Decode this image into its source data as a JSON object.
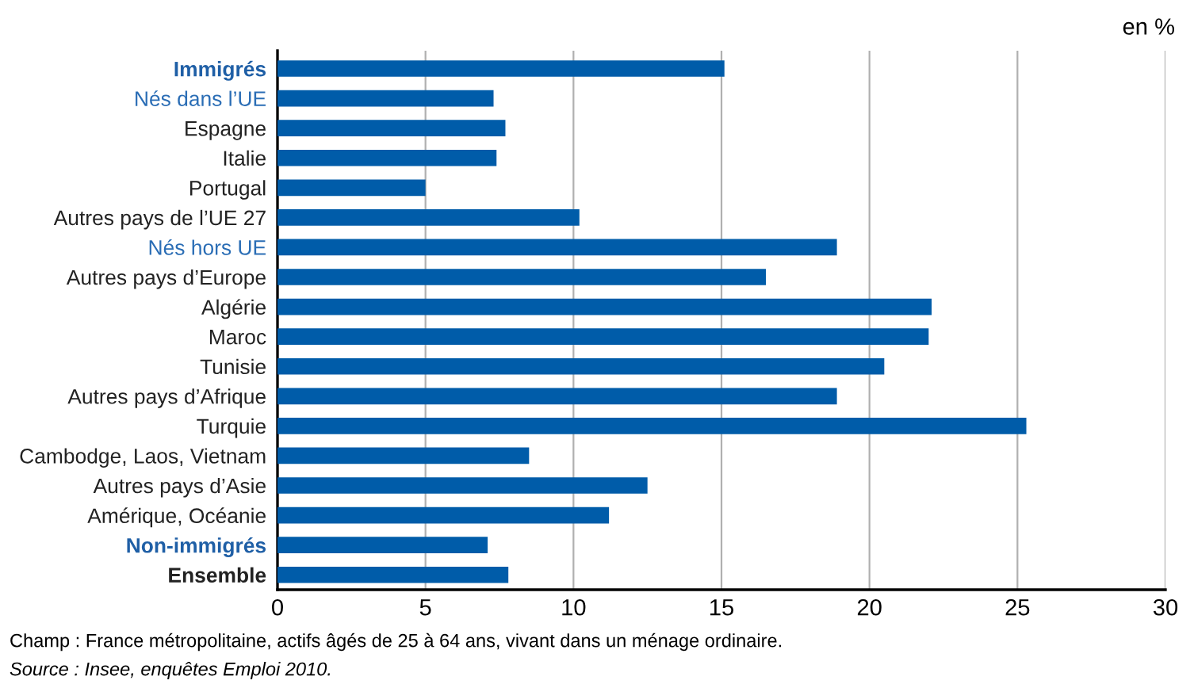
{
  "chart_data": {
    "type": "bar",
    "orientation": "horizontal",
    "categories": [
      "Immigrés",
      "Nés dans l’UE",
      "Espagne",
      "Italie",
      "Portugal",
      "Autres pays de l’UE 27",
      "Nés hors UE",
      "Autres pays d’Europe",
      "Algérie",
      "Maroc",
      "Tunisie",
      "Autres pays d’Afrique",
      "Turquie",
      "Cambodge, Laos, Vietnam",
      "Autres pays d’Asie",
      "Amérique, Océanie",
      "Non-immigrés",
      "Ensemble"
    ],
    "values": [
      15.1,
      7.3,
      7.7,
      7.4,
      5.0,
      10.2,
      18.9,
      16.5,
      22.1,
      22.0,
      20.5,
      18.9,
      25.3,
      8.5,
      12.5,
      11.2,
      7.1,
      7.8
    ],
    "color": "#005ca9",
    "xlabel": "en %",
    "xlim": [
      0,
      30
    ],
    "xticks": [
      0,
      5,
      10,
      15,
      20,
      25,
      30
    ],
    "grid": "x",
    "annotations": [
      "Champ : France métropolitaine, actifs âgés de 25 à 64 ans, vivant dans un ménage ordinaire.",
      "Source : Insee, enquêtes Emploi 2010."
    ]
  }
}
